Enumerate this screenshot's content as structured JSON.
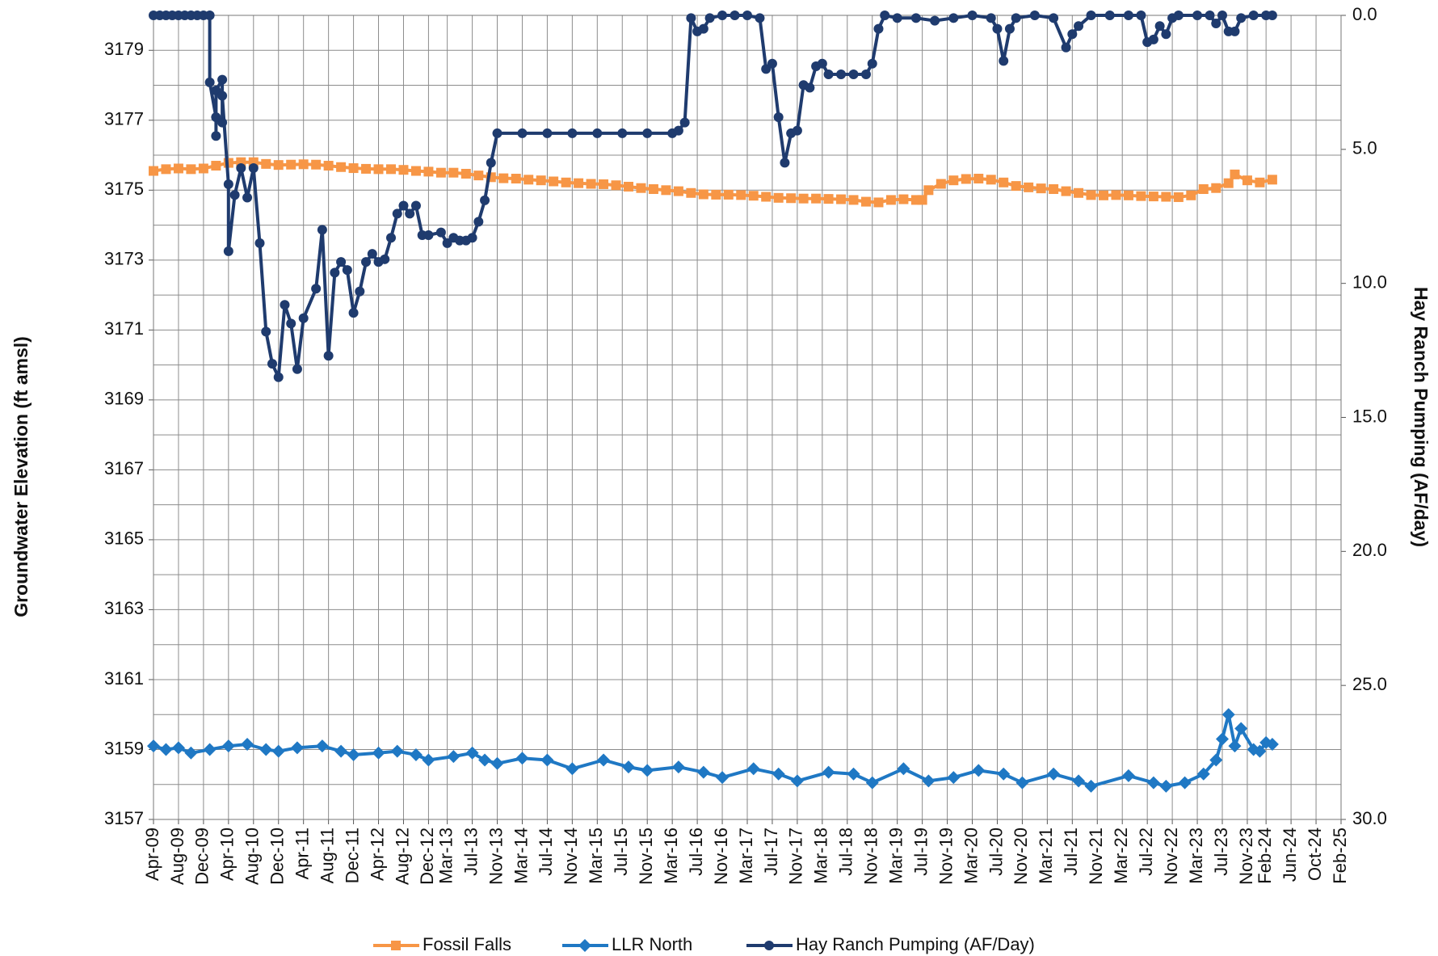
{
  "chart_data": {
    "type": "line",
    "ylabel": "Groundwater Elevation (ft amsl)",
    "y2label": "Hay Ranch Pumping (AF/day)",
    "ylim": [
      3157,
      3180
    ],
    "yticks": [
      3157,
      3159,
      3161,
      3163,
      3165,
      3167,
      3169,
      3171,
      3173,
      3175,
      3177,
      3179
    ],
    "yminorticks": [
      3158,
      3160,
      3162,
      3164,
      3166,
      3168,
      3170,
      3172,
      3174,
      3176,
      3178,
      3180
    ],
    "y2lim": [
      30,
      0
    ],
    "y2ticks": [
      {
        "value": 0,
        "label": "0.0"
      },
      {
        "value": 5,
        "label": "5.0"
      },
      {
        "value": 10,
        "label": "10.0"
      },
      {
        "value": 15,
        "label": "15.0"
      },
      {
        "value": 20,
        "label": "20.0"
      },
      {
        "value": 25,
        "label": "25.0"
      },
      {
        "value": 30,
        "label": "30.0"
      }
    ],
    "xlim": [
      "2009-04",
      "2025-02"
    ],
    "xticks": [
      {
        "value": "2009-04",
        "label": "Apr-09"
      },
      {
        "value": "2009-08",
        "label": "Aug-09"
      },
      {
        "value": "2009-12",
        "label": "Dec-09"
      },
      {
        "value": "2010-04",
        "label": "Apr-10"
      },
      {
        "value": "2010-08",
        "label": "Aug-10"
      },
      {
        "value": "2010-12",
        "label": "Dec-10"
      },
      {
        "value": "2011-04",
        "label": "Apr-11"
      },
      {
        "value": "2011-08",
        "label": "Aug-11"
      },
      {
        "value": "2011-12",
        "label": "Dec-11"
      },
      {
        "value": "2012-04",
        "label": "Apr-12"
      },
      {
        "value": "2012-08",
        "label": "Aug-12"
      },
      {
        "value": "2012-12",
        "label": "Dec-12"
      },
      {
        "value": "2013-03",
        "label": "Mar-13"
      },
      {
        "value": "2013-07",
        "label": "Jul-13"
      },
      {
        "value": "2013-11",
        "label": "Nov-13"
      },
      {
        "value": "2014-03",
        "label": "Mar-14"
      },
      {
        "value": "2014-07",
        "label": "Jul-14"
      },
      {
        "value": "2014-11",
        "label": "Nov-14"
      },
      {
        "value": "2015-03",
        "label": "Mar-15"
      },
      {
        "value": "2015-07",
        "label": "Jul-15"
      },
      {
        "value": "2015-11",
        "label": "Nov-15"
      },
      {
        "value": "2016-03",
        "label": "Mar-16"
      },
      {
        "value": "2016-07",
        "label": "Jul-16"
      },
      {
        "value": "2016-11",
        "label": "Nov-16"
      },
      {
        "value": "2017-03",
        "label": "Mar-17"
      },
      {
        "value": "2017-07",
        "label": "Jul-17"
      },
      {
        "value": "2017-11",
        "label": "Nov-17"
      },
      {
        "value": "2018-03",
        "label": "Mar-18"
      },
      {
        "value": "2018-07",
        "label": "Jul-18"
      },
      {
        "value": "2018-11",
        "label": "Nov-18"
      },
      {
        "value": "2019-03",
        "label": "Mar-19"
      },
      {
        "value": "2019-07",
        "label": "Jul-19"
      },
      {
        "value": "2019-11",
        "label": "Nov-19"
      },
      {
        "value": "2020-03",
        "label": "Mar-20"
      },
      {
        "value": "2020-07",
        "label": "Jul-20"
      },
      {
        "value": "2020-11",
        "label": "Nov-20"
      },
      {
        "value": "2021-03",
        "label": "Mar-21"
      },
      {
        "value": "2021-07",
        "label": "Jul-21"
      },
      {
        "value": "2021-11",
        "label": "Nov-21"
      },
      {
        "value": "2022-03",
        "label": "Mar-22"
      },
      {
        "value": "2022-07",
        "label": "Jul-22"
      },
      {
        "value": "2022-11",
        "label": "Nov-22"
      },
      {
        "value": "2023-03",
        "label": "Mar-23"
      },
      {
        "value": "2023-07",
        "label": "Jul-23"
      },
      {
        "value": "2023-11",
        "label": "Nov-23"
      },
      {
        "value": "2024-02",
        "label": "Feb-24"
      },
      {
        "value": "2024-06",
        "label": "Jun-24"
      },
      {
        "value": "2024-10",
        "label": "Oct-24"
      },
      {
        "value": "2025-02",
        "label": "Feb-25"
      }
    ],
    "grid": true,
    "legend": "bottom",
    "series": [
      {
        "name": "Fossil Falls",
        "color": "#f79646",
        "marker": "square",
        "x": [
          "2009-04",
          "2009-06",
          "2009-08",
          "2009-10",
          "2009-12",
          "2010-02",
          "2010-04",
          "2010-06",
          "2010-08",
          "2010-10",
          "2010-12",
          "2011-02",
          "2011-04",
          "2011-06",
          "2011-08",
          "2011-10",
          "2011-12",
          "2012-02",
          "2012-04",
          "2012-06",
          "2012-08",
          "2012-10",
          "2012-12",
          "2013-02",
          "2013-04",
          "2013-06",
          "2013-08",
          "2013-10",
          "2013-12",
          "2014-02",
          "2014-04",
          "2014-06",
          "2014-08",
          "2014-10",
          "2014-12",
          "2015-02",
          "2015-04",
          "2015-06",
          "2015-08",
          "2015-10",
          "2015-12",
          "2016-02",
          "2016-04",
          "2016-06",
          "2016-08",
          "2016-10",
          "2016-12",
          "2017-02",
          "2017-04",
          "2017-06",
          "2017-08",
          "2017-10",
          "2017-12",
          "2018-02",
          "2018-04",
          "2018-06",
          "2018-08",
          "2018-10",
          "2018-12",
          "2019-02",
          "2019-04",
          "2019-06",
          "2019-07",
          "2019-08",
          "2019-10",
          "2019-12",
          "2020-02",
          "2020-04",
          "2020-06",
          "2020-08",
          "2020-10",
          "2020-12",
          "2021-02",
          "2021-04",
          "2021-06",
          "2021-08",
          "2021-10",
          "2021-12",
          "2022-02",
          "2022-04",
          "2022-06",
          "2022-08",
          "2022-10",
          "2022-12",
          "2023-02",
          "2023-04",
          "2023-06",
          "2023-08",
          "2023-09",
          "2023-11",
          "2024-01",
          "2024-03"
        ],
        "values": [
          3175.55,
          3175.6,
          3175.62,
          3175.6,
          3175.62,
          3175.7,
          3175.78,
          3175.8,
          3175.8,
          3175.75,
          3175.72,
          3175.73,
          3175.74,
          3175.73,
          3175.7,
          3175.66,
          3175.63,
          3175.61,
          3175.6,
          3175.6,
          3175.58,
          3175.55,
          3175.53,
          3175.5,
          3175.5,
          3175.47,
          3175.42,
          3175.37,
          3175.34,
          3175.33,
          3175.3,
          3175.28,
          3175.25,
          3175.22,
          3175.2,
          3175.18,
          3175.17,
          3175.14,
          3175.1,
          3175.06,
          3175.03,
          3175.0,
          3174.97,
          3174.92,
          3174.88,
          3174.87,
          3174.87,
          3174.86,
          3174.84,
          3174.81,
          3174.78,
          3174.77,
          3174.76,
          3174.76,
          3174.75,
          3174.74,
          3174.72,
          3174.67,
          3174.65,
          3174.72,
          3174.74,
          3174.72,
          3174.72,
          3175.0,
          3175.18,
          3175.28,
          3175.32,
          3175.33,
          3175.3,
          3175.22,
          3175.12,
          3175.08,
          3175.05,
          3175.03,
          3174.97,
          3174.92,
          3174.86,
          3174.85,
          3174.86,
          3174.85,
          3174.83,
          3174.82,
          3174.81,
          3174.8,
          3174.85,
          3175.03,
          3175.06,
          3175.2,
          3175.45,
          3175.28,
          3175.22,
          3175.3
        ]
      },
      {
        "name": "LLR North",
        "color": "#1f78c4",
        "marker": "diamond",
        "x": [
          "2009-04",
          "2009-06",
          "2009-08",
          "2009-10",
          "2010-01",
          "2010-04",
          "2010-07",
          "2010-10",
          "2010-12",
          "2011-03",
          "2011-07",
          "2011-10",
          "2011-12",
          "2012-04",
          "2012-07",
          "2012-10",
          "2012-12",
          "2013-04",
          "2013-07",
          "2013-09",
          "2013-11",
          "2014-03",
          "2014-07",
          "2014-11",
          "2015-04",
          "2015-08",
          "2015-11",
          "2016-04",
          "2016-08",
          "2016-11",
          "2017-04",
          "2017-08",
          "2017-11",
          "2018-04",
          "2018-08",
          "2018-11",
          "2019-04",
          "2019-08",
          "2019-12",
          "2020-04",
          "2020-08",
          "2020-11",
          "2021-04",
          "2021-08",
          "2021-10",
          "2022-04",
          "2022-08",
          "2022-10",
          "2023-01",
          "2023-04",
          "2023-06",
          "2023-07",
          "2023-08",
          "2023-09",
          "2023-10",
          "2023-12",
          "2024-01",
          "2024-02",
          "2024-03"
        ],
        "values": [
          3159.1,
          3159.0,
          3159.05,
          3158.9,
          3159.0,
          3159.1,
          3159.15,
          3159.0,
          3158.95,
          3159.05,
          3159.1,
          3158.95,
          3158.85,
          3158.9,
          3158.95,
          3158.85,
          3158.7,
          3158.8,
          3158.9,
          3158.7,
          3158.6,
          3158.75,
          3158.7,
          3158.45,
          3158.7,
          3158.5,
          3158.4,
          3158.5,
          3158.35,
          3158.2,
          3158.45,
          3158.3,
          3158.1,
          3158.35,
          3158.3,
          3158.05,
          3158.45,
          3158.1,
          3158.2,
          3158.4,
          3158.3,
          3158.05,
          3158.3,
          3158.1,
          3157.95,
          3158.25,
          3158.05,
          3157.95,
          3158.05,
          3158.3,
          3158.7,
          3159.3,
          3160.0,
          3159.1,
          3159.6,
          3159.0,
          3158.95,
          3159.2,
          3159.15
        ]
      },
      {
        "name": "Hay Ranch Pumping (AF/Day)",
        "color": "#1f3b6e",
        "marker": "circle",
        "axis": "y2",
        "x": [
          "2009-04",
          "2009-05",
          "2009-06",
          "2009-07",
          "2009-08",
          "2009-09",
          "2009-10",
          "2009-11",
          "2009-12",
          "2010-01",
          "2010-01",
          "2010-02",
          "2010-02",
          "2010-02",
          "2010-03",
          "2010-03",
          "2010-03",
          "2010-04",
          "2010-04",
          "2010-05",
          "2010-06",
          "2010-07",
          "2010-08",
          "2010-09",
          "2010-10",
          "2010-11",
          "2010-12",
          "2011-01",
          "2011-02",
          "2011-03",
          "2011-04",
          "2011-06",
          "2011-07",
          "2011-08",
          "2011-09",
          "2011-10",
          "2011-11",
          "2011-12",
          "2012-01",
          "2012-02",
          "2012-03",
          "2012-04",
          "2012-05",
          "2012-06",
          "2012-07",
          "2012-08",
          "2012-09",
          "2012-10",
          "2012-11",
          "2012-12",
          "2013-02",
          "2013-03",
          "2013-04",
          "2013-05",
          "2013-06",
          "2013-07",
          "2013-08",
          "2013-09",
          "2013-10",
          "2013-11",
          "2014-03",
          "2014-07",
          "2014-11",
          "2015-03",
          "2015-07",
          "2015-11",
          "2016-03",
          "2016-04",
          "2016-05",
          "2016-06",
          "2016-07",
          "2016-08",
          "2016-09",
          "2016-11",
          "2017-01",
          "2017-03",
          "2017-05",
          "2017-06",
          "2017-07",
          "2017-08",
          "2017-09",
          "2017-10",
          "2017-11",
          "2017-12",
          "2018-01",
          "2018-02",
          "2018-03",
          "2018-04",
          "2018-06",
          "2018-08",
          "2018-10",
          "2018-11",
          "2018-12",
          "2019-01",
          "2019-03",
          "2019-06",
          "2019-09",
          "2019-12",
          "2020-03",
          "2020-06",
          "2020-07",
          "2020-08",
          "2020-09",
          "2020-10",
          "2021-01",
          "2021-04",
          "2021-06",
          "2021-07",
          "2021-08",
          "2021-10",
          "2022-01",
          "2022-04",
          "2022-06",
          "2022-07",
          "2022-08",
          "2022-09",
          "2022-10",
          "2022-11",
          "2022-12",
          "2023-03",
          "2023-05",
          "2023-06",
          "2023-07",
          "2023-08",
          "2023-09",
          "2023-10",
          "2023-12",
          "2024-02",
          "2024-03"
        ],
        "values": [
          0,
          0,
          0,
          0,
          0,
          0,
          0,
          0,
          0,
          0,
          2.5,
          3.8,
          4.5,
          2.8,
          2.4,
          4.0,
          3.0,
          6.3,
          8.8,
          6.7,
          5.7,
          6.8,
          5.7,
          8.5,
          11.8,
          13.0,
          13.5,
          10.8,
          11.5,
          13.2,
          11.3,
          10.2,
          8.0,
          12.7,
          9.6,
          9.2,
          9.5,
          11.1,
          10.3,
          9.2,
          8.9,
          9.2,
          9.1,
          8.3,
          7.4,
          7.1,
          7.4,
          7.1,
          8.2,
          8.2,
          8.1,
          8.5,
          8.3,
          8.4,
          8.4,
          8.3,
          7.7,
          6.9,
          5.5,
          4.4,
          4.4,
          4.4,
          4.4,
          4.4,
          4.4,
          4.4,
          4.4,
          4.3,
          4.0,
          0.1,
          0.6,
          0.5,
          0.1,
          0,
          0,
          0,
          0.1,
          2.0,
          1.8,
          3.8,
          5.5,
          4.4,
          4.3,
          2.6,
          2.7,
          1.9,
          1.8,
          2.2,
          2.2,
          2.2,
          2.2,
          1.8,
          0.5,
          0,
          0.1,
          0.1,
          0.2,
          0.1,
          0,
          0.1,
          0.5,
          1.7,
          0.5,
          0.1,
          0,
          0.1,
          1.2,
          0.7,
          0.4,
          0,
          0,
          0,
          0,
          1.0,
          0.9,
          0.4,
          0.7,
          0.1,
          0,
          0,
          0,
          0.3,
          0,
          0.6,
          0.6,
          0.1,
          0,
          0,
          0
        ]
      }
    ]
  }
}
